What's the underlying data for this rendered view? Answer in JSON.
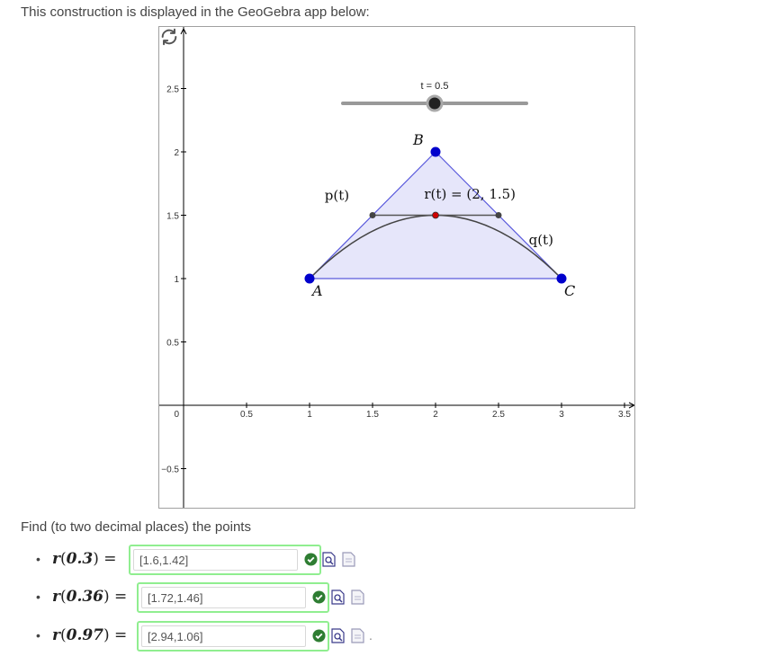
{
  "intro_text": "This construction is displayed in the GeoGebra app below:",
  "question_text": "Find (to two decimal places) the points",
  "graph": {
    "x_ticks": [
      "0.5",
      "1",
      "1.5",
      "2",
      "2.5",
      "3",
      "3.5"
    ],
    "y_ticks": [
      "2.5",
      "2",
      "1.5",
      "1",
      "0.5",
      "0",
      "−0.5"
    ],
    "slider_label": "t = 0.5",
    "slider_value": 0.5,
    "points": [
      {
        "label": "A",
        "x": 1,
        "y": 1
      },
      {
        "label": "B",
        "x": 2,
        "y": 2
      },
      {
        "label": "C",
        "x": 3,
        "y": 1
      }
    ],
    "p_label": "p(t)",
    "q_label": "q(t)",
    "r_label": "r(t) = (2, 1.5)",
    "segment_left": {
      "x": 1.5,
      "y": 1.5
    },
    "segment_right": {
      "x": 2.5,
      "y": 1.5
    },
    "r_point": {
      "x": 2,
      "y": 1.5
    },
    "colors": {
      "triangle_fill": "#e6e6fa",
      "triangle_edge": "#5a5adc",
      "vertex": "#0000cc",
      "r_point": "#cc0000",
      "curve": "#444444",
      "slider": "#999999"
    }
  },
  "answers": [
    {
      "arg": "0.3",
      "value": "[1.6,1.42]"
    },
    {
      "arg": "0.36",
      "value": "[1.72,1.46]"
    },
    {
      "arg": "0.97",
      "value": "[2.94,1.06]"
    }
  ],
  "trailing_period": "."
}
